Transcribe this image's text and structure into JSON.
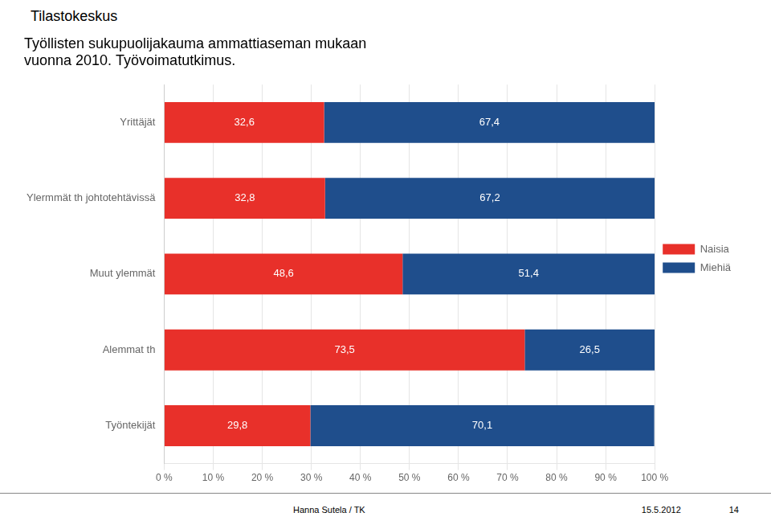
{
  "chart_data": {
    "type": "bar",
    "title": [
      "Työllisten sukupuolijakauma ammattiaseman mukaan",
      "vuonna 2010. Työvoimatutkimus."
    ],
    "annotations": [
      "Tilastokeskus",
      "Hanna Sutela / TK",
      "15.5.2012",
      "14"
    ],
    "orientation": "horizontal",
    "stacked": true,
    "data_labels": true,
    "grid": "x",
    "legend": "right",
    "categories": [
      "Yrittäjät",
      "Ylermmät th johtotehtävissä",
      "Muut ylemmät",
      "Alemmat th",
      "Työntekijät"
    ],
    "series": [
      {
        "name": "Naisia",
        "color": "#e8302a",
        "values": [
          32.6,
          32.8,
          48.6,
          73.5,
          29.8
        ],
        "value_labels": [
          "32,6",
          "32,8",
          "48,6",
          "73,5",
          "29,8"
        ]
      },
      {
        "name": "Miehiä",
        "color": "#1f4e8c",
        "values": [
          67.4,
          67.2,
          51.4,
          26.5,
          70.1
        ],
        "value_labels": [
          "67,4",
          "67,2",
          "51,4",
          "26,5",
          "70,1"
        ]
      }
    ],
    "xlim": [
      0,
      100
    ],
    "xticks": [
      {
        "value": 0,
        "label": "0 %"
      },
      {
        "value": 10,
        "label": "10 %"
      },
      {
        "value": 20,
        "label": "20 %"
      },
      {
        "value": 30,
        "label": "30 %"
      },
      {
        "value": 40,
        "label": "40 %"
      },
      {
        "value": 50,
        "label": "50 %"
      },
      {
        "value": 60,
        "label": "60 %"
      },
      {
        "value": 70,
        "label": "70 %"
      },
      {
        "value": 80,
        "label": "80 %"
      },
      {
        "value": 90,
        "label": "90 %"
      },
      {
        "value": 100,
        "label": "100 %"
      }
    ]
  }
}
